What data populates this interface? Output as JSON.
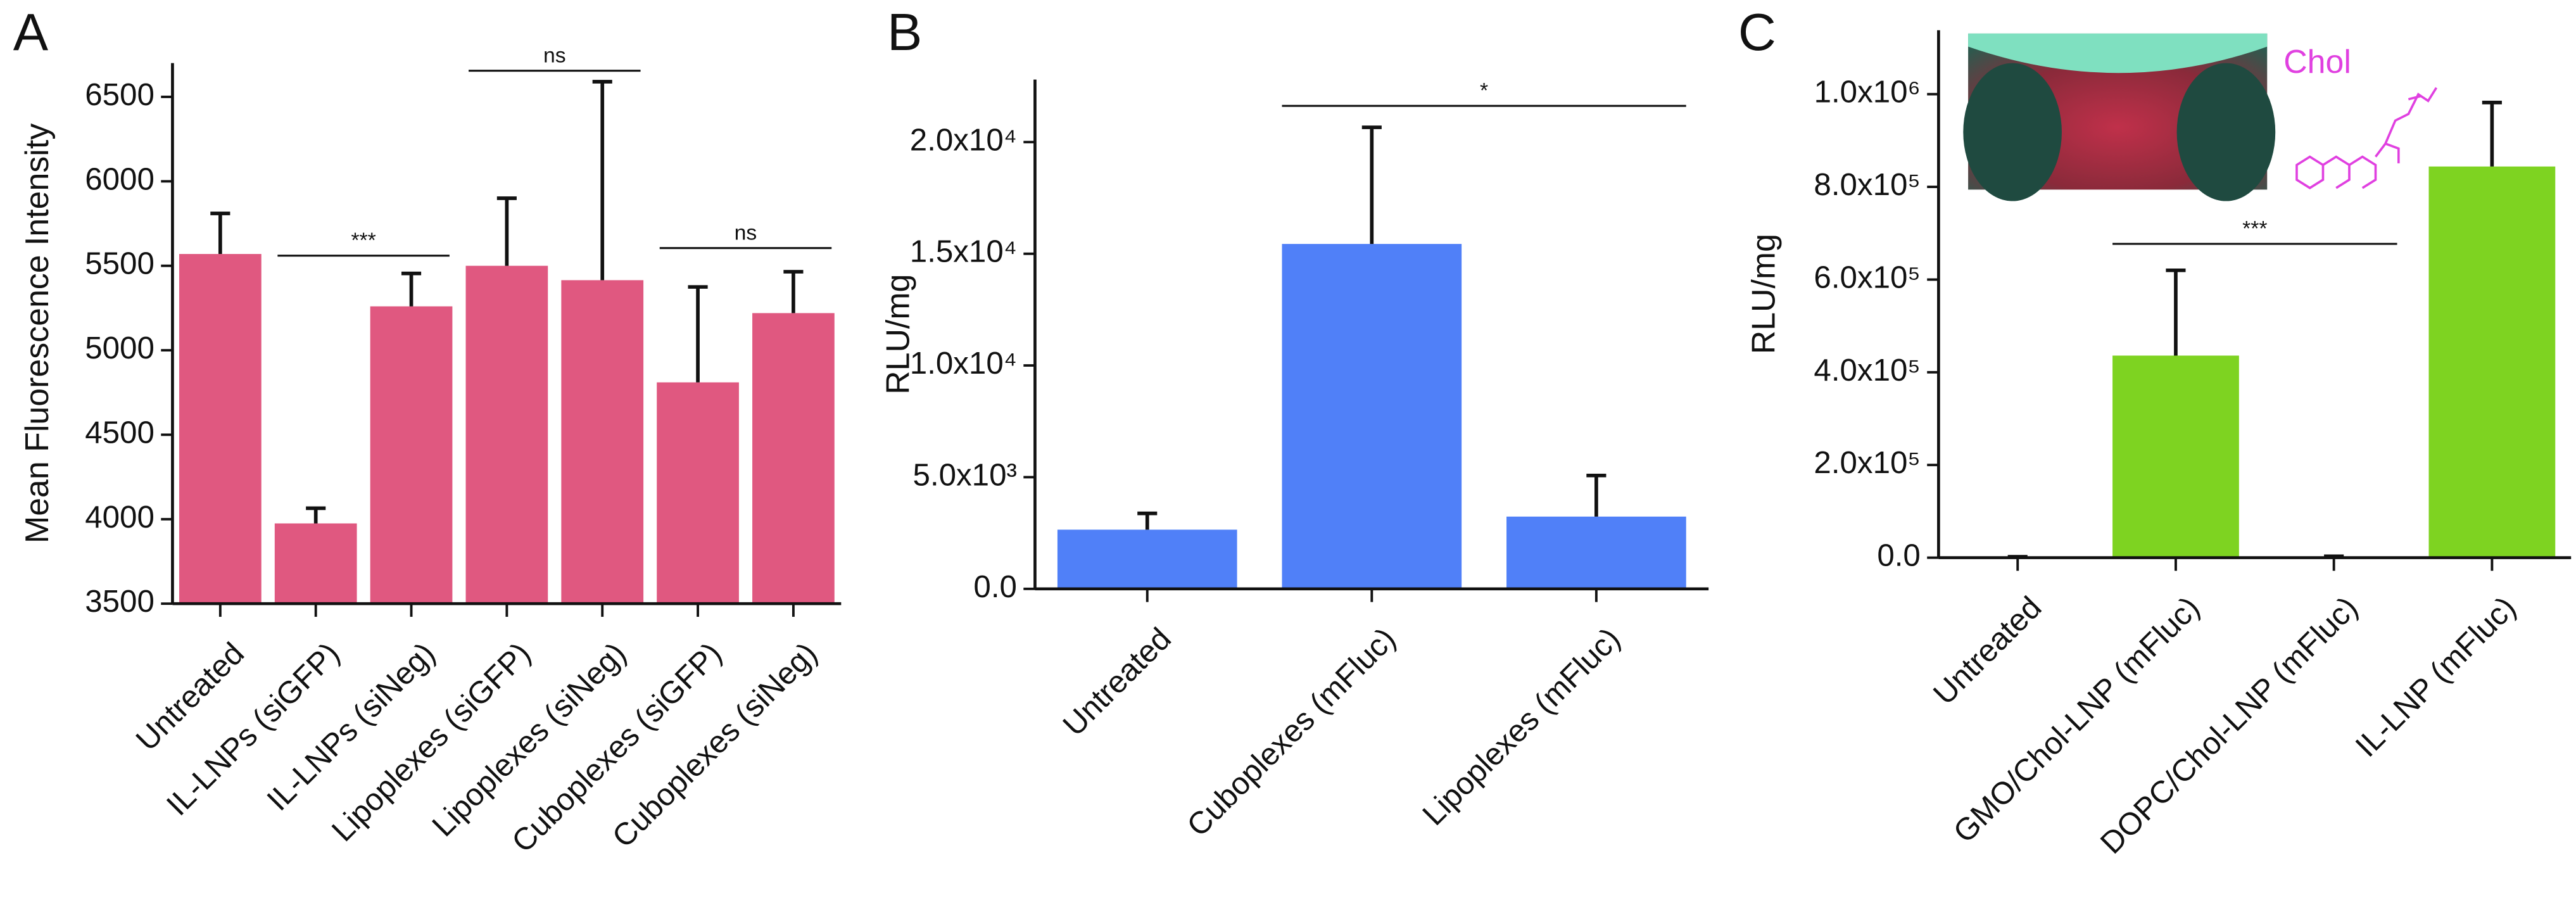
{
  "chart_data": [
    {
      "type": "bar",
      "panel": "A",
      "ylabel": "Mean Fluorescence Intensity",
      "color": "#e05880",
      "categories": [
        "Untreated",
        "IL-LNPs (siGFP)",
        "IL-LNPs (siNeg)",
        "Lipoplexes (siGFP)",
        "Lipoplexes (siNeg)",
        "Cuboplexes (siGFP)",
        "Cuboplexes (siNeg)"
      ],
      "values": [
        5570,
        3975,
        5260,
        5500,
        5415,
        4810,
        5220
      ],
      "errors": [
        240,
        90,
        195,
        400,
        1175,
        565,
        245
      ],
      "ylim": [
        3500,
        6700
      ],
      "yticks": [
        3500,
        4000,
        4500,
        5000,
        5500,
        6000,
        6500
      ],
      "annotations": [
        {
          "text": "***",
          "from": 1,
          "to": 2,
          "y": 5560
        },
        {
          "text": "ns",
          "from": 3,
          "to": 4,
          "y": 6655
        },
        {
          "text": "ns",
          "from": 5,
          "to": 6,
          "y": 5605
        }
      ]
    },
    {
      "type": "bar",
      "panel": "B",
      "ylabel": "RLU/mg",
      "color": "#5080f8",
      "categories": [
        "Untreated",
        "Cuboplexes (mFluc)",
        "Lipoplexes (mFluc)"
      ],
      "values": [
        2650,
        15440,
        3235
      ],
      "errors": [
        730,
        5220,
        1840
      ],
      "ylim": [
        0,
        22800
      ],
      "yticks": [
        {
          "value": 0,
          "label": "0.0"
        },
        {
          "value": 5000,
          "label": "5.0x10³"
        },
        {
          "value": 10000,
          "label": "1.0x10⁴"
        },
        {
          "value": 15000,
          "label": "1.5x10⁴"
        },
        {
          "value": 20000,
          "label": "2.0x10⁴"
        }
      ],
      "annotations": [
        {
          "text": "*",
          "from": 1,
          "to": 2,
          "y": 21620
        }
      ]
    },
    {
      "type": "bar",
      "panel": "C",
      "ylabel": "RLU/mg",
      "color": "#7ed321",
      "inset_label": "Chol",
      "categories": [
        "Untreated",
        "GMO/Chol-LNP (mFluc)",
        "DOPC/Chol-LNP (mFluc)",
        "IL-LNP (mFluc)"
      ],
      "values": [
        0,
        436000,
        0,
        844000
      ],
      "errors": [
        2000,
        184000,
        3000,
        138000
      ],
      "ylim": [
        0,
        1138000
      ],
      "yticks": [
        {
          "value": 0,
          "label": "0.0"
        },
        {
          "value": 200000,
          "label": "2.0x10⁵"
        },
        {
          "value": 400000,
          "label": "4.0x10⁵"
        },
        {
          "value": 600000,
          "label": "6.0x10⁵"
        },
        {
          "value": 800000,
          "label": "8.0x10⁵"
        },
        {
          "value": 1000000,
          "label": "1.0x10⁶"
        }
      ],
      "annotations": [
        {
          "text": "***",
          "from": 1,
          "to": 2,
          "y": 677000
        }
      ]
    }
  ]
}
